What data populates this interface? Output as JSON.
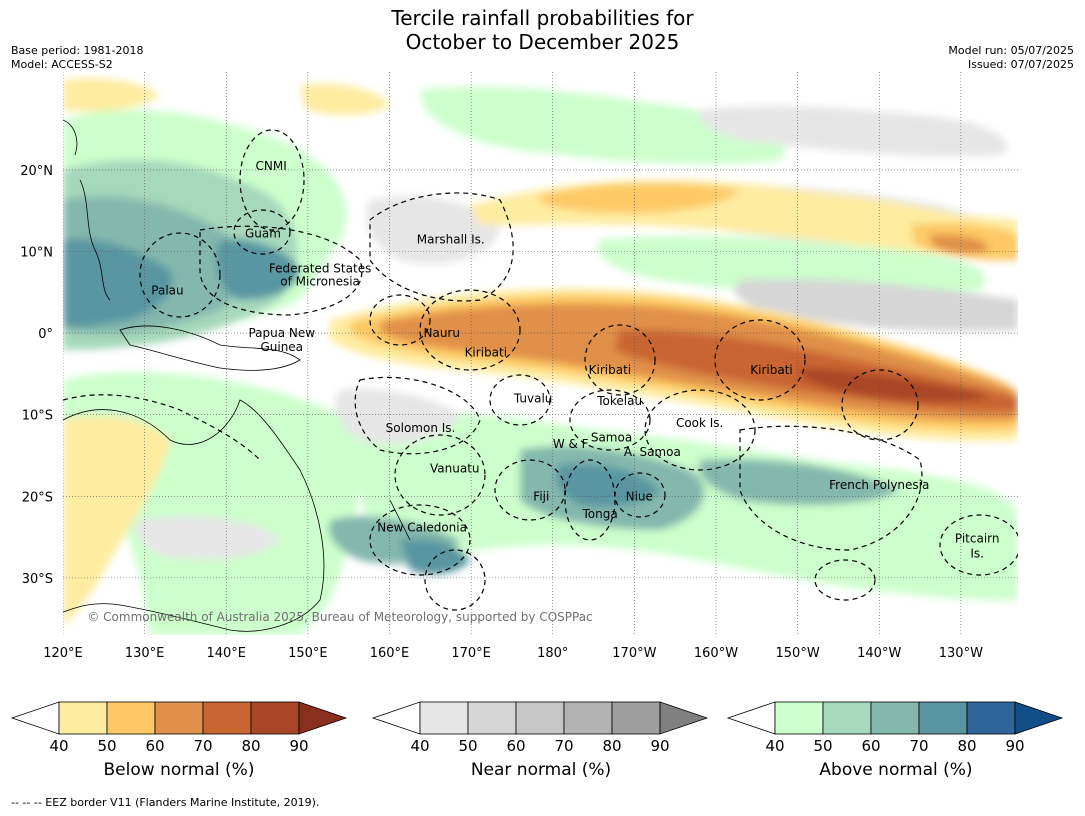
{
  "title_line1": "Tercile rainfall probabilities for",
  "title_line2": "October to December 2025",
  "meta_left": [
    "Base period: 1981-2018",
    "Model: ACCESS-S2"
  ],
  "meta_right": [
    "Model run: 05/07/2025",
    "Issued: 07/07/2025"
  ],
  "map": {
    "lat_labels": [
      "20°N",
      "10°N",
      "0°",
      "10°S",
      "20°S",
      "30°S"
    ],
    "lat_values": [
      20,
      10,
      0,
      -10,
      -20,
      -30
    ],
    "lon_labels": [
      "120°E",
      "130°E",
      "140°E",
      "150°E",
      "160°E",
      "170°E",
      "180°",
      "170°W",
      "160°W",
      "150°W",
      "140°W",
      "130°W"
    ],
    "lon_values": [
      120,
      130,
      140,
      150,
      160,
      170,
      180,
      190,
      200,
      210,
      220,
      230
    ],
    "lon_range": [
      120,
      237
    ],
    "lat_range": [
      -37,
      32
    ],
    "copyright": "© Commonwealth of Australia 2025, Bureau of Meteorology, supported by COSPPac",
    "regions": [
      {
        "name": "CNMI",
        "lon": 145.5,
        "lat": 20.5
      },
      {
        "name": "Guam",
        "lon": 144.5,
        "lat": 12.2
      },
      {
        "name": "Marshall Is.",
        "lon": 167.5,
        "lat": 11.5
      },
      {
        "name": "Federated States",
        "lon": 151.5,
        "lat": 7.9
      },
      {
        "name": "of Micronesia",
        "lon": 151.5,
        "lat": 6.3
      },
      {
        "name": "Palau",
        "lon": 132.8,
        "lat": 5.2
      },
      {
        "name": "Papua New",
        "lon": 146.8,
        "lat": 0
      },
      {
        "name": "Guinea",
        "lon": 146.8,
        "lat": -1.7
      },
      {
        "name": "Nauru",
        "lon": 166.4,
        "lat": 0
      },
      {
        "name": "Kiribati",
        "lon": 171.8,
        "lat": -2.4
      },
      {
        "name": "Kiribati",
        "lon": 187.0,
        "lat": -4.5
      },
      {
        "name": "Kiribati",
        "lon": 206.8,
        "lat": -4.5
      },
      {
        "name": "Tuvalu",
        "lon": 177.6,
        "lat": -8.0
      },
      {
        "name": "Tokelau",
        "lon": 188.2,
        "lat": -8.3
      },
      {
        "name": "Cook Is.",
        "lon": 198.0,
        "lat": -11.0
      },
      {
        "name": "Solomon Is.",
        "lon": 163.8,
        "lat": -11.6
      },
      {
        "name": "Samoa",
        "lon": 187.2,
        "lat": -12.8
      },
      {
        "name": "W & F",
        "lon": 182.2,
        "lat": -13.6
      },
      {
        "name": "A. Samoa",
        "lon": 192.2,
        "lat": -14.6
      },
      {
        "name": "Vanuatu",
        "lon": 168.0,
        "lat": -16.6
      },
      {
        "name": "French Polynesia",
        "lon": 220.0,
        "lat": -18.6
      },
      {
        "name": "Fiji",
        "lon": 178.6,
        "lat": -20.0
      },
      {
        "name": "Niue",
        "lon": 190.6,
        "lat": -20.0
      },
      {
        "name": "Tonga",
        "lon": 185.8,
        "lat": -22.2
      },
      {
        "name": "New Caledonia",
        "lon": 164.0,
        "lat": -23.8
      },
      {
        "name": "Pitcairn",
        "lon": 232.0,
        "lat": -25.2
      },
      {
        "name": "Is.",
        "lon": 232.0,
        "lat": -27.0
      }
    ]
  },
  "colorbars": [
    {
      "label": "Below normal (%)",
      "ticks": [
        "40",
        "50",
        "60",
        "70",
        "80",
        "90"
      ],
      "colors": [
        "#ffffff",
        "#feeca0",
        "#fec965",
        "#e0904a",
        "#c96530",
        "#a94628",
        "#8a2f1e"
      ]
    },
    {
      "label": "Near normal (%)",
      "ticks": [
        "40",
        "50",
        "60",
        "70",
        "80",
        "90"
      ],
      "colors": [
        "#ffffff",
        "#e6e6e6",
        "#d6d6d6",
        "#c6c6c6",
        "#b3b3b3",
        "#9e9e9e",
        "#808080"
      ]
    },
    {
      "label": "Above normal (%)",
      "ticks": [
        "40",
        "50",
        "60",
        "70",
        "80",
        "90"
      ],
      "colors": [
        "#ffffff",
        "#ccffcc",
        "#a5d8bc",
        "#84b8ad",
        "#5a96a2",
        "#2f6598",
        "#114e88"
      ]
    }
  ],
  "footer": "--  --  -- EEZ border V11 (Flanders Marine Institute, 2019)."
}
